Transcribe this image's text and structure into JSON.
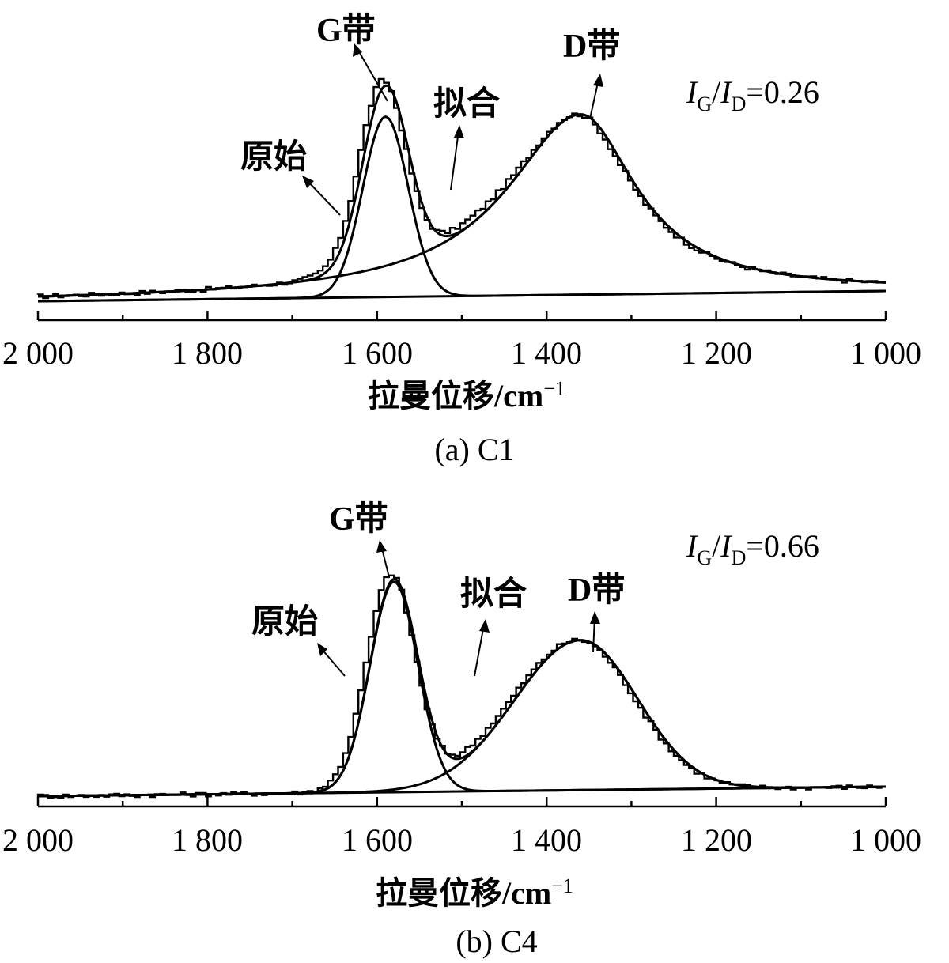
{
  "chart_data": [
    {
      "type": "line",
      "id": "C1",
      "caption": "(a) C1",
      "xlabel": "拉曼位移/cm",
      "xlabel_sup": "−1",
      "ylabel": "",
      "xlim": [
        2000,
        1000
      ],
      "x_ticks": [
        2000,
        1800,
        1600,
        1400,
        1200,
        1000
      ],
      "x_tick_labels": [
        "2 000",
        "1 800",
        "1 600",
        "1 400",
        "1 200",
        "1 000"
      ],
      "minor_ticks": [
        1900,
        1700,
        1500,
        1300,
        1100
      ],
      "ratio": {
        "label_a": "I",
        "sub_a": "G",
        "slash": "/",
        "label_b": "I",
        "sub_b": "D",
        "value": "=0.26"
      },
      "annotations": {
        "g_band": "G带",
        "d_band": "D带",
        "fit": "拟合",
        "raw": "原始"
      },
      "series": [
        {
          "name": "G带",
          "center": 1590,
          "width": 38,
          "amplitude": 0.8,
          "shape": "gauss"
        },
        {
          "name": "D带",
          "center": 1360,
          "left_width": 105,
          "right_width": 80,
          "amplitude": 0.8,
          "shape": "lorentz"
        },
        {
          "name": "拟合",
          "note": "sum of G带 and D带"
        },
        {
          "name": "原始",
          "note": "raw stepped spectrum"
        }
      ]
    },
    {
      "type": "line",
      "id": "C4",
      "caption": "(b) C4",
      "xlabel": "拉曼位移/cm",
      "xlabel_sup": "−1",
      "ylabel": "",
      "xlim": [
        2000,
        1000
      ],
      "x_ticks": [
        2000,
        1800,
        1600,
        1400,
        1200,
        1000
      ],
      "x_tick_labels": [
        "2 000",
        "1 800",
        "1 600",
        "1 400",
        "1 200",
        "1 000"
      ],
      "minor_ticks": [
        1900,
        1700,
        1500,
        1300,
        1100
      ],
      "ratio": {
        "label_a": "I",
        "sub_a": "G",
        "slash": "/",
        "label_b": "I",
        "sub_b": "D",
        "value": "=0.66"
      },
      "annotations": {
        "g_band": "G带",
        "d_band": "D带",
        "fit": "拟合",
        "raw": "原始"
      },
      "series": [
        {
          "name": "G带",
          "center": 1580,
          "width": 40,
          "amplitude": 0.94,
          "shape": "gauss"
        },
        {
          "name": "D带",
          "center": 1360,
          "left_width": 110,
          "right_width": 95,
          "amplitude": 0.67,
          "shape": "gauss"
        },
        {
          "name": "拟合",
          "note": "sum of G带 and D带"
        },
        {
          "name": "原始",
          "note": "raw stepped spectrum"
        }
      ]
    }
  ]
}
